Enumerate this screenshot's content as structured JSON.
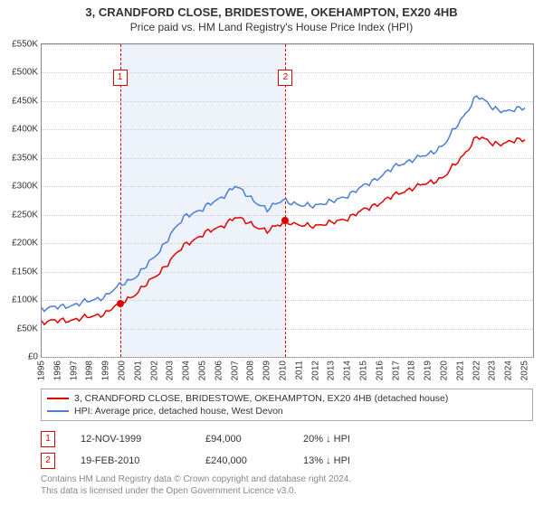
{
  "title": "3, CRANDFORD CLOSE, BRIDESTOWE, OKEHAMPTON, EX20 4HB",
  "subtitle": "Price paid vs. HM Land Registry's House Price Index (HPI)",
  "colors": {
    "axis": "#888888",
    "grid": "#cccccc",
    "series_red": "#e10000",
    "series_blue": "#4a7fd6",
    "marker": "#e10000",
    "shaded_bg": "#eef3fb",
    "text": "#333333",
    "license": "#888888",
    "legend_border": "#aaaaaa"
  },
  "chart": {
    "type": "line",
    "ylim": [
      0,
      550
    ],
    "ytick_step": 50,
    "ytick_prefix": "£",
    "ytick_suffix": "K",
    "xlim": [
      1995,
      2025.5
    ],
    "xticks": [
      1995,
      1996,
      1997,
      1998,
      1999,
      2000,
      2001,
      2002,
      2003,
      2004,
      2005,
      2006,
      2007,
      2008,
      2009,
      2010,
      2011,
      2012,
      2013,
      2014,
      2015,
      2016,
      2017,
      2018,
      2019,
      2020,
      2021,
      2022,
      2023,
      2024,
      2025
    ],
    "shaded": {
      "from": 1999.86,
      "to": 2010.13
    },
    "markers": [
      {
        "label": "1",
        "x": 1999.86,
        "box_y": 505
      },
      {
        "label": "2",
        "x": 2010.13,
        "box_y": 505
      }
    ],
    "series": [
      {
        "name": "red",
        "color_key": "series_red",
        "points": [
          [
            1995,
            62
          ],
          [
            1996,
            63
          ],
          [
            1997,
            66
          ],
          [
            1998,
            70
          ],
          [
            1999,
            78
          ],
          [
            1999.86,
            94
          ],
          [
            2000.5,
            105
          ],
          [
            2001,
            115
          ],
          [
            2002,
            140
          ],
          [
            2003,
            170
          ],
          [
            2004,
            200
          ],
          [
            2005,
            215
          ],
          [
            2006,
            228
          ],
          [
            2007,
            245
          ],
          [
            2008,
            235
          ],
          [
            2009,
            220
          ],
          [
            2010.13,
            240
          ],
          [
            2011,
            230
          ],
          [
            2012,
            232
          ],
          [
            2013,
            235
          ],
          [
            2014,
            245
          ],
          [
            2015,
            258
          ],
          [
            2016,
            272
          ],
          [
            2017,
            285
          ],
          [
            2018,
            298
          ],
          [
            2019,
            305
          ],
          [
            2020,
            318
          ],
          [
            2021,
            348
          ],
          [
            2022,
            388
          ],
          [
            2023,
            375
          ],
          [
            2024,
            378
          ],
          [
            2025,
            382
          ]
        ]
      },
      {
        "name": "blue",
        "color_key": "series_blue",
        "points": [
          [
            1995,
            85
          ],
          [
            1996,
            87
          ],
          [
            1997,
            92
          ],
          [
            1998,
            98
          ],
          [
            1999,
            108
          ],
          [
            2000,
            128
          ],
          [
            2001,
            145
          ],
          [
            2002,
            175
          ],
          [
            2003,
            215
          ],
          [
            2004,
            250
          ],
          [
            2005,
            260
          ],
          [
            2006,
            278
          ],
          [
            2007,
            300
          ],
          [
            2008,
            280
          ],
          [
            2009,
            258
          ],
          [
            2010,
            278
          ],
          [
            2011,
            265
          ],
          [
            2012,
            268
          ],
          [
            2013,
            272
          ],
          [
            2014,
            285
          ],
          [
            2015,
            300
          ],
          [
            2016,
            318
          ],
          [
            2017,
            335
          ],
          [
            2018,
            348
          ],
          [
            2019,
            355
          ],
          [
            2020,
            375
          ],
          [
            2021,
            415
          ],
          [
            2022,
            460
          ],
          [
            2023,
            438
          ],
          [
            2024,
            432
          ],
          [
            2025,
            438
          ]
        ]
      }
    ],
    "sale_points": [
      {
        "x": 1999.86,
        "y": 94,
        "color_key": "series_red"
      },
      {
        "x": 2010.13,
        "y": 240,
        "color_key": "series_red"
      }
    ]
  },
  "legend": [
    {
      "color_key": "series_red",
      "label": "3, CRANDFORD CLOSE, BRIDESTOWE, OKEHAMPTON, EX20 4HB (detached house)"
    },
    {
      "color_key": "series_blue",
      "label": "HPI: Average price, detached house, West Devon"
    }
  ],
  "sales": [
    {
      "num": "1",
      "date": "12-NOV-1999",
      "price": "£94,000",
      "hpi": "20% ↓ HPI"
    },
    {
      "num": "2",
      "date": "19-FEB-2010",
      "price": "£240,000",
      "hpi": "13% ↓ HPI"
    }
  ],
  "license_line1": "Contains HM Land Registry data © Crown copyright and database right 2024.",
  "license_line2": "This data is licensed under the Open Government Licence v3.0."
}
